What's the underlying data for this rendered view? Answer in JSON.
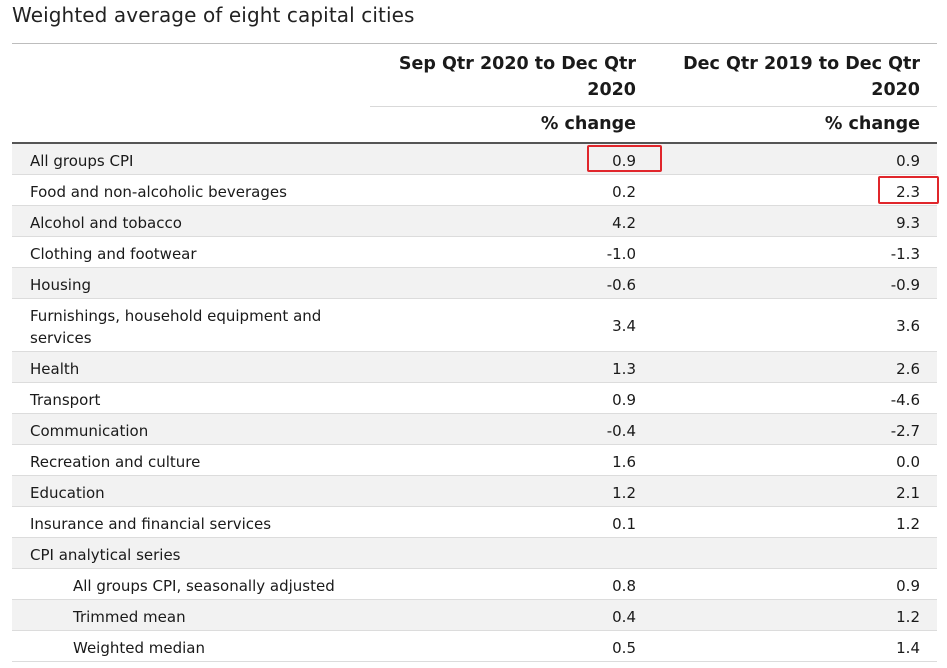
{
  "title": "Weighted average of eight capital cities",
  "columns": [
    {
      "heading": "Sep Qtr 2020 to Dec Qtr 2020",
      "heading_line1": "Sep Qtr 2020 to Dec Qtr",
      "heading_line2": "2020",
      "unit": "% change"
    },
    {
      "heading": "Dec Qtr 2019 to Dec Qtr 2020",
      "heading_line1": "Dec Qtr 2019 to Dec Qtr",
      "heading_line2": "2020",
      "unit": "% change"
    }
  ],
  "rows": [
    {
      "label": "All groups CPI",
      "quarterly": "0.9",
      "annual": "0.9"
    },
    {
      "label": "Food and non-alcoholic beverages",
      "quarterly": "0.2",
      "annual": "2.3"
    },
    {
      "label": "Alcohol and tobacco",
      "quarterly": "4.2",
      "annual": "9.3"
    },
    {
      "label": "Clothing and footwear",
      "quarterly": "-1.0",
      "annual": "-1.3"
    },
    {
      "label": "Housing",
      "quarterly": "-0.6",
      "annual": "-0.9"
    },
    {
      "label": "Furnishings, household equipment and services",
      "quarterly": "3.4",
      "annual": "3.6"
    },
    {
      "label": "Health",
      "quarterly": "1.3",
      "annual": "2.6"
    },
    {
      "label": "Transport",
      "quarterly": "0.9",
      "annual": "-4.6"
    },
    {
      "label": "Communication",
      "quarterly": "-0.4",
      "annual": "-2.7"
    },
    {
      "label": "Recreation and culture",
      "quarterly": "1.6",
      "annual": "0.0"
    },
    {
      "label": "Education",
      "quarterly": "1.2",
      "annual": "2.1"
    },
    {
      "label": "Insurance and financial services",
      "quarterly": "0.1",
      "annual": "1.2"
    },
    {
      "label": "CPI analytical series",
      "quarterly": "",
      "annual": ""
    },
    {
      "label": "All groups CPI, seasonally adjusted",
      "quarterly": "0.8",
      "annual": "0.9"
    },
    {
      "label": "Trimmed mean",
      "quarterly": "0.4",
      "annual": "1.2"
    },
    {
      "label": "Weighted median",
      "quarterly": "0.5",
      "annual": "1.4"
    }
  ],
  "colors": {
    "highlight": "#e0262b",
    "row_alt_bg": "#f2f2f2"
  }
}
